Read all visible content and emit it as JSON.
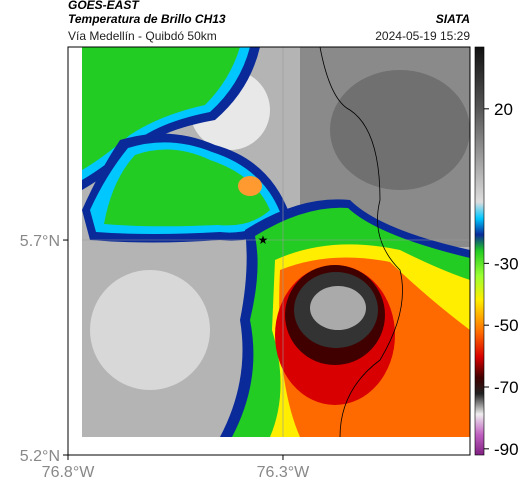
{
  "header": {
    "title": "GOES-EAST",
    "subtitle": "Temperatura de Brillo CH13",
    "route": "Vía Medellín - Quibdó 50km",
    "source": "SIATA",
    "datetime": "2024-05-19 15:29"
  },
  "map": {
    "xlim": [
      -76.8,
      -75.865
    ],
    "ylim": [
      5.2,
      6.149
    ],
    "xticks": [
      {
        "value": -76.8,
        "label": "76.8°W"
      },
      {
        "value": -76.3,
        "label": "76.3°W"
      }
    ],
    "yticks": [
      {
        "value": 5.7,
        "label": "5.7°N"
      },
      {
        "value": 5.2,
        "label": "5.2°N"
      }
    ]
  },
  "colorbar": {
    "lim": [
      -92,
      40
    ],
    "ticks": [
      20,
      -30,
      -50,
      -70,
      -90
    ]
  }
}
